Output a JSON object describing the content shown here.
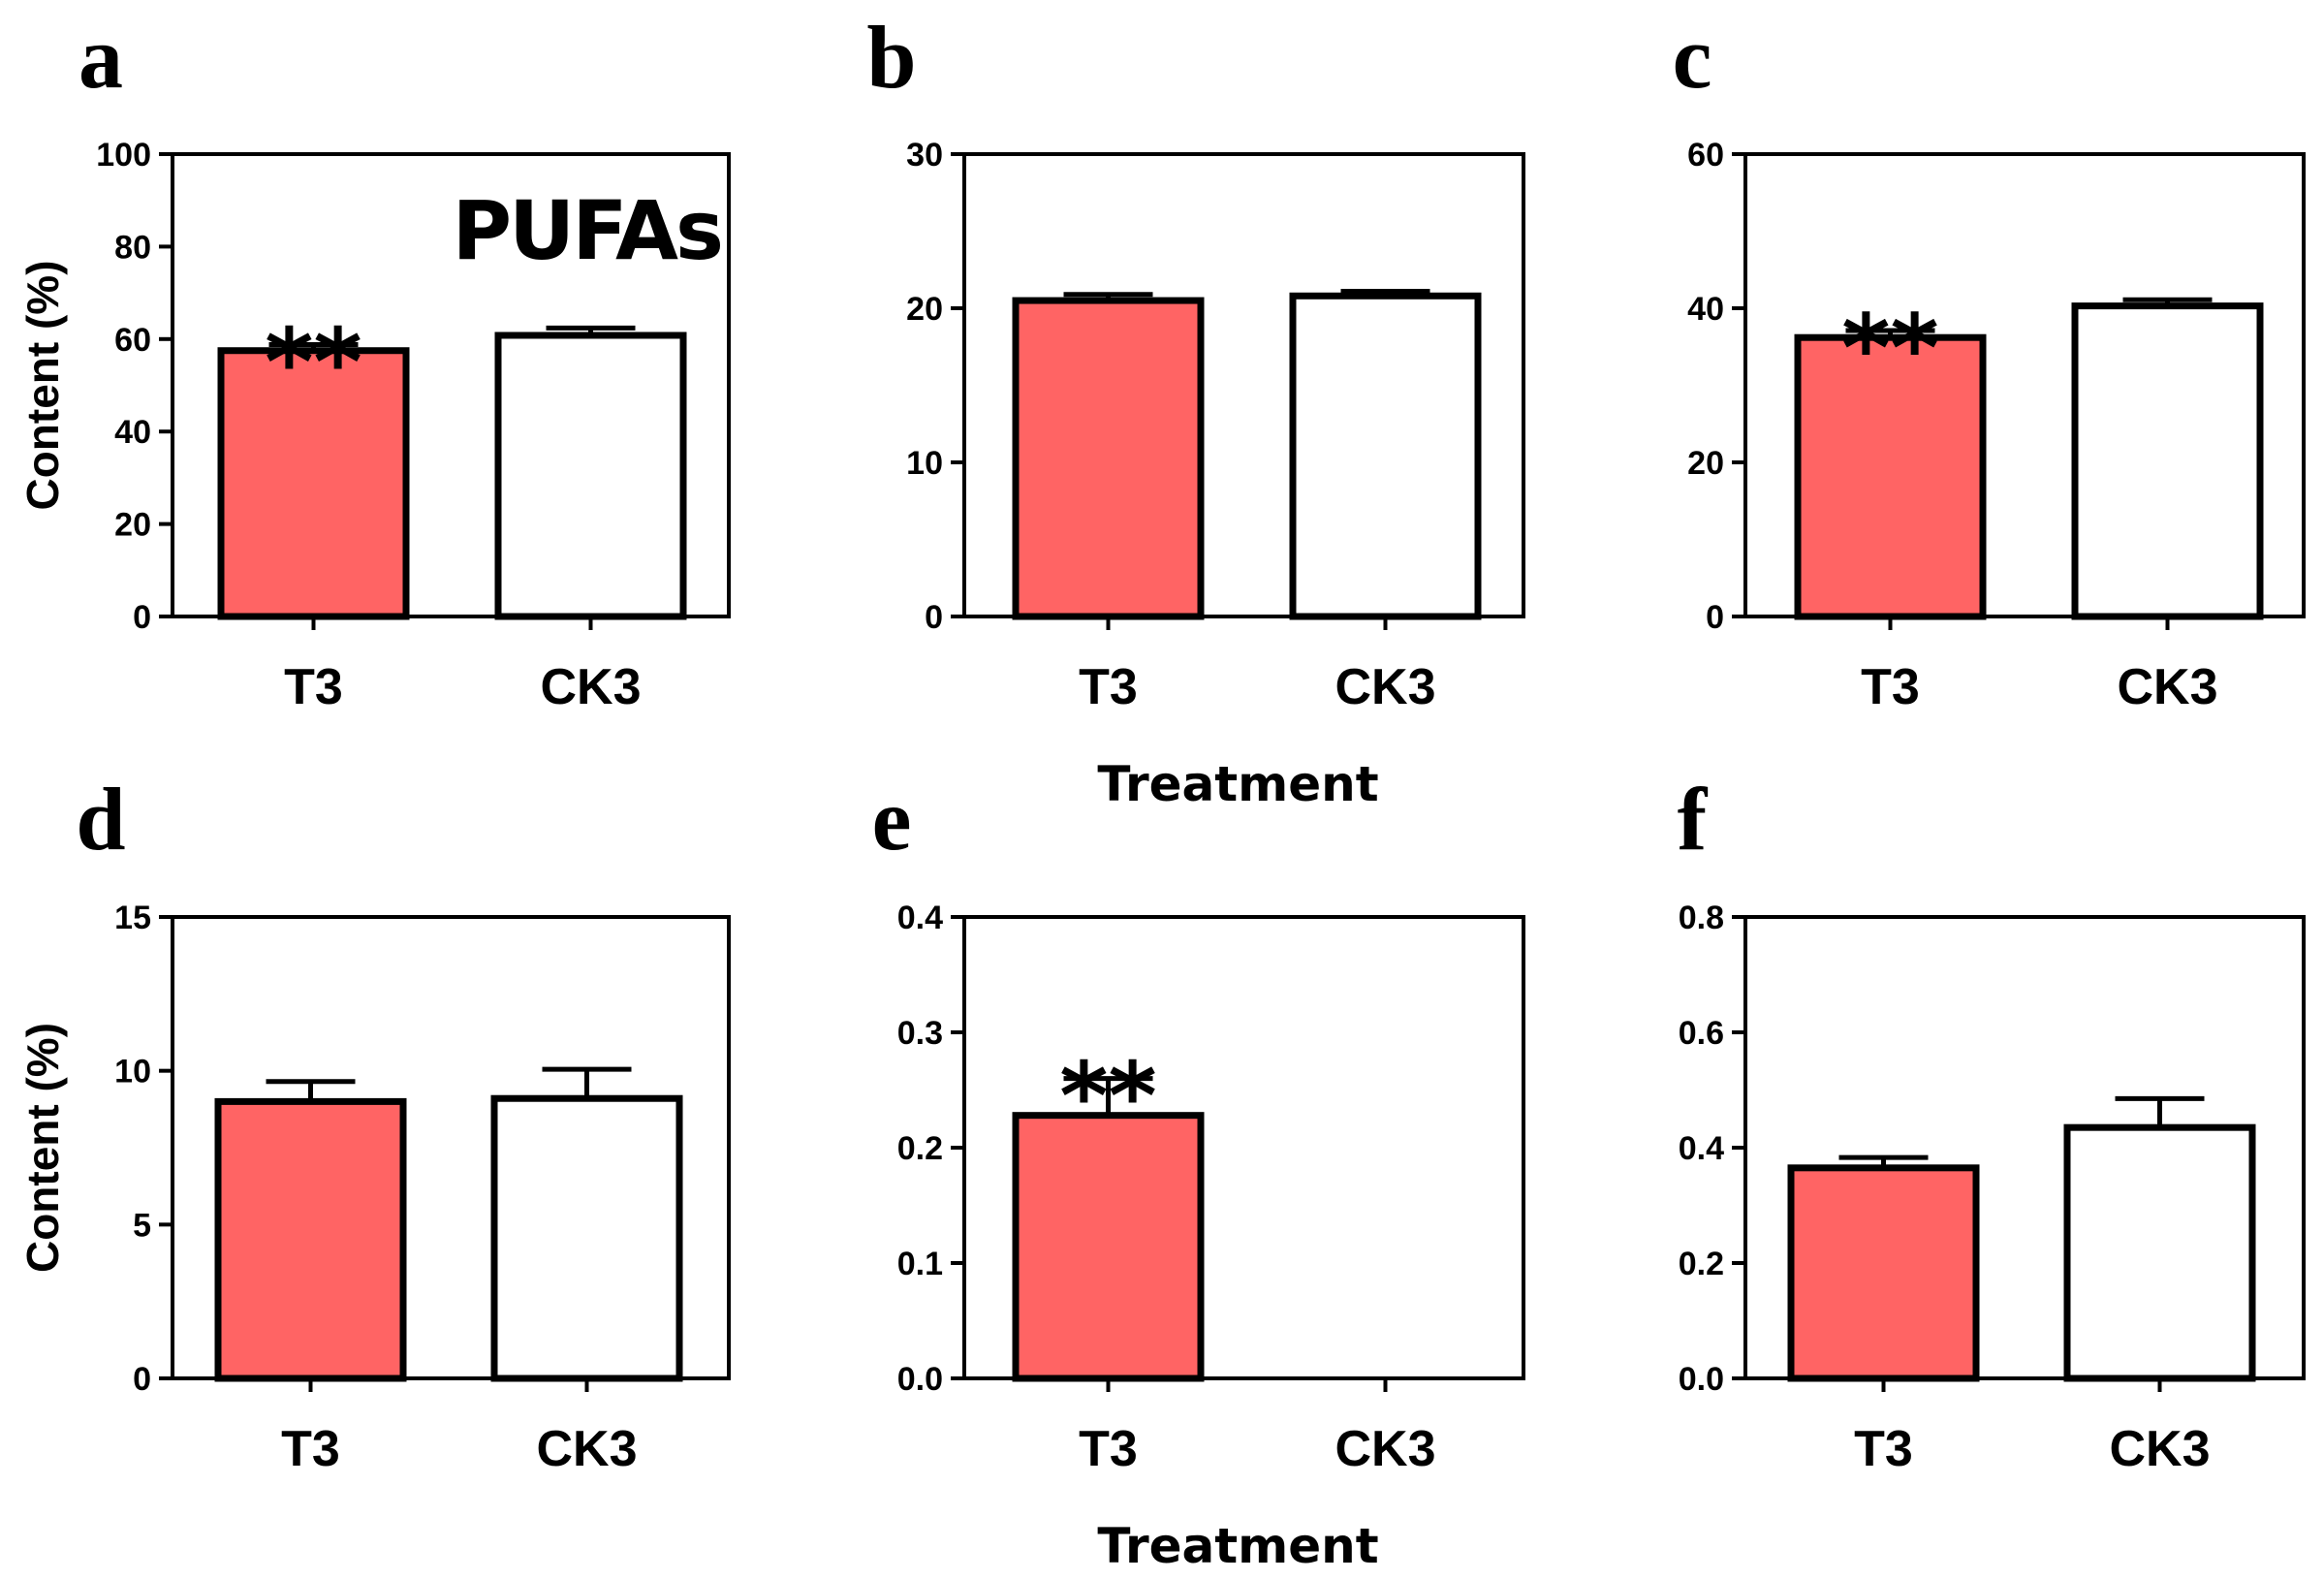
{
  "chart_data": [
    {
      "type": "bar",
      "panel": "a",
      "annotation": "PUFAs",
      "categories": [
        "T3",
        "CK3"
      ],
      "values": [
        57.5,
        60.8
      ],
      "errors": [
        1.3,
        1.6
      ],
      "significance": [
        "**",
        ""
      ],
      "colors": [
        "#ff6464",
        "#ffffff"
      ],
      "ylabel": "Content (%)",
      "xlabel": "",
      "ylim": [
        0,
        100
      ],
      "yticks": [
        0,
        20,
        40,
        60,
        80,
        100
      ],
      "ytick_labels": [
        "0",
        "20",
        "40",
        "60",
        "80",
        "100"
      ]
    },
    {
      "type": "bar",
      "panel": "b",
      "annotation": "",
      "categories": [
        "T3",
        "CK3"
      ],
      "values": [
        20.5,
        20.8
      ],
      "errors": [
        0.4,
        0.3
      ],
      "significance": [
        "",
        ""
      ],
      "colors": [
        "#ff6464",
        "#ffffff"
      ],
      "ylabel": "",
      "xlabel": "Treatment",
      "ylim": [
        0,
        30
      ],
      "yticks": [
        0,
        10,
        20,
        30
      ],
      "ytick_labels": [
        "0",
        "10",
        "20",
        "30"
      ]
    },
    {
      "type": "bar",
      "panel": "c",
      "annotation": "",
      "categories": [
        "T3",
        "CK3"
      ],
      "values": [
        36.2,
        40.3
      ],
      "errors": [
        0.9,
        0.8
      ],
      "significance": [
        "**",
        ""
      ],
      "colors": [
        "#ff6464",
        "#ffffff"
      ],
      "ylabel": "",
      "xlabel": "",
      "ylim": [
        0,
        60
      ],
      "yticks": [
        0,
        20,
        40,
        60
      ],
      "ytick_labels": [
        "0",
        "20",
        "40",
        "60"
      ]
    },
    {
      "type": "bar",
      "panel": "d",
      "annotation": "",
      "categories": [
        "T3",
        "CK3"
      ],
      "values": [
        9.0,
        9.1
      ],
      "errors": [
        0.65,
        0.95
      ],
      "significance": [
        "",
        ""
      ],
      "colors": [
        "#ff6464",
        "#ffffff"
      ],
      "ylabel": "Content (%)",
      "xlabel": "",
      "ylim": [
        0,
        15
      ],
      "yticks": [
        0,
        5,
        10,
        15
      ],
      "ytick_labels": [
        "0",
        "5",
        "10",
        "15"
      ]
    },
    {
      "type": "bar",
      "panel": "e",
      "annotation": "",
      "categories": [
        "T3",
        "CK3"
      ],
      "values": [
        0.228,
        0.0
      ],
      "errors": [
        0.032,
        0.0
      ],
      "significance": [
        "**",
        ""
      ],
      "colors": [
        "#ff6464",
        "#ffffff"
      ],
      "ylabel": "",
      "xlabel": "Treatment",
      "ylim": [
        0,
        0.4
      ],
      "yticks": [
        0,
        0.1,
        0.2,
        0.3,
        0.4
      ],
      "ytick_labels": [
        "0.0",
        "0.1",
        "0.2",
        "0.3",
        "0.4"
      ]
    },
    {
      "type": "bar",
      "panel": "f",
      "annotation": "",
      "categories": [
        "T3",
        "CK3"
      ],
      "values": [
        0.365,
        0.435
      ],
      "errors": [
        0.018,
        0.05
      ],
      "significance": [
        "",
        ""
      ],
      "colors": [
        "#ff6464",
        "#ffffff"
      ],
      "ylabel": "",
      "xlabel": "",
      "ylim": [
        0,
        0.8
      ],
      "yticks": [
        0,
        0.2,
        0.4,
        0.6,
        0.8
      ],
      "ytick_labels": [
        "0.0",
        "0.2",
        "0.4",
        "0.6",
        "0.8"
      ]
    }
  ]
}
